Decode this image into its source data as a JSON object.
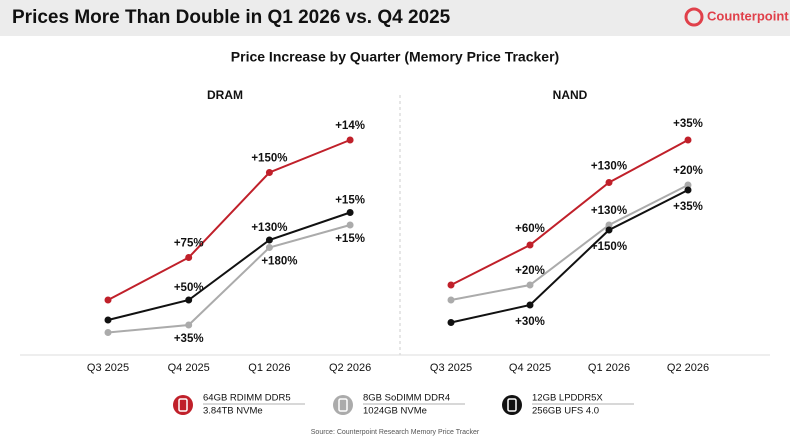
{
  "header": {
    "title": "Prices More Than Double in Q1 2026 vs. Q4 2025",
    "brand": "Counterpoint"
  },
  "subtitle": "Price Increase by Quarter (Memory Price Tracker)",
  "chart_data": [
    {
      "type": "line",
      "title": "DRAM",
      "categories": [
        "Q3 2025",
        "Q4 2025",
        "Q1 2026",
        "Q2 2026"
      ],
      "ylim": [
        0,
        100
      ],
      "series": [
        {
          "name": "64GB RDIMM DDR5",
          "color": "#c0202a",
          "values": [
            20,
            37,
            71,
            84
          ],
          "labels": [
            null,
            "+75%",
            "+150%",
            "+14%"
          ]
        },
        {
          "name": "8GB SoDIMM DDR4",
          "color": "#ababab",
          "values": [
            7,
            10,
            41,
            50
          ],
          "labels": [
            null,
            "+35%",
            "+180%",
            "+15%"
          ]
        },
        {
          "name": "12GB LPDDR5X",
          "color": "#111111",
          "values": [
            12,
            20,
            44,
            55
          ],
          "labels": [
            null,
            "+50%",
            "+130%",
            "+15%"
          ]
        }
      ]
    },
    {
      "type": "line",
      "title": "NAND",
      "categories": [
        "Q3 2025",
        "Q4 2025",
        "Q1 2026",
        "Q2 2026"
      ],
      "ylim": [
        0,
        100
      ],
      "series": [
        {
          "name": "64GB RDIMM DDR5",
          "color": "#c0202a",
          "values": [
            26,
            42,
            67,
            84
          ],
          "labels": [
            null,
            "+60%",
            "+130%",
            "+35%"
          ]
        },
        {
          "name": "8GB SoDIMM DDR4",
          "color": "#ababab",
          "values": [
            20,
            26,
            50,
            66
          ],
          "labels": [
            null,
            "+20%",
            "+130%",
            "+20%"
          ]
        },
        {
          "name": "12GB LPDDR5X",
          "color": "#111111",
          "values": [
            11,
            18,
            48,
            64
          ],
          "labels": [
            null,
            "+30%",
            "+150%",
            "+35%"
          ]
        }
      ]
    }
  ],
  "legend": [
    {
      "name": "64GB RDIMM DDR5",
      "detail": "3.84TB NVMe",
      "color": "#c0202a"
    },
    {
      "name": "8GB SoDIMM DDR4",
      "detail": "1024GB NVMe",
      "color": "#ababab"
    },
    {
      "name": "12GB LPDDR5X",
      "detail": "256GB UFS 4.0",
      "color": "#111111"
    }
  ],
  "source": "Source: Counterpoint Research Memory Price Tracker"
}
